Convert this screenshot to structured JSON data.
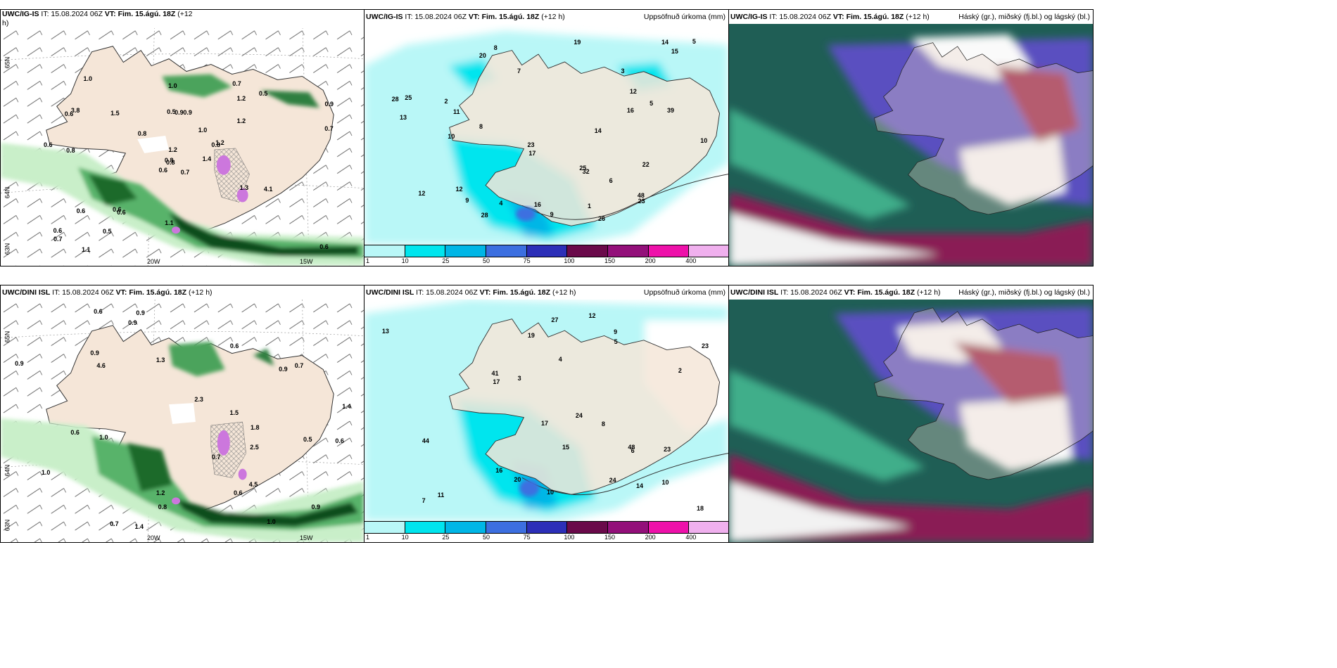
{
  "top_row": {
    "wind": {
      "model": "UWC/IG-IS",
      "it": "IT: 15.08.2024 06Z",
      "vt": "VT: Fim. 15.ágú. 18Z",
      "lead": "(+12",
      "lead2": "h)",
      "lat_labels": [
        "65N",
        "64N",
        "63N"
      ],
      "lon_labels": [
        "20W",
        "15W"
      ],
      "values": [
        "0.7",
        "0.6",
        "0.8",
        "0.6",
        "0.8",
        "0.6",
        "0.7",
        "0.9",
        "1.2",
        "1.4",
        "1.0",
        "0.6",
        "0.8",
        "0.9",
        "0.6",
        "1.2",
        "1.1",
        "0.5",
        "1.0",
        "0.6",
        "0.8",
        "0.7",
        "0.5",
        "0.9",
        "1.2",
        "4.1",
        "3.8",
        "1.0",
        "0.6",
        "1.3",
        "0.7",
        "0.8",
        "1.1",
        "1.2",
        "1.5",
        "0.5",
        "0.6"
      ]
    },
    "precip": {
      "model": "UWC/IG-IS",
      "it": "IT: 15.08.2024 06Z",
      "vt": "VT: Fim. 15.ágú. 18Z",
      "lead": "(+12 h)",
      "title": "Uppsöfnuð úrkoma (mm)",
      "values": [
        "26",
        "20",
        "12",
        "2",
        "5",
        "1",
        "10",
        "8",
        "17",
        "9",
        "12",
        "28",
        "23",
        "25",
        "16",
        "14",
        "13",
        "15",
        "22",
        "39",
        "48",
        "32",
        "28",
        "23",
        "14",
        "12",
        "10",
        "11",
        "9",
        "7",
        "6",
        "5",
        "3",
        "4",
        "8",
        "16",
        "19",
        "25"
      ]
    },
    "cloud": {
      "model": "UWC/IG-IS",
      "it": "IT: 15.08.2024 06Z",
      "vt": "VT: Fim. 15.ágú. 18Z",
      "lead": "(+12 h)",
      "title": "Háský (gr.), miðský (fj.bl.) og lágský (bl.)"
    }
  },
  "bottom_row": {
    "wind": {
      "model": "UWC/DINI ISL",
      "it": "IT: 15.08.2024 06Z",
      "vt": "VT: Fim. 15.ágú. 18Z",
      "lead": "(+12 h)",
      "lat_labels": [
        "65N",
        "64N",
        "63N"
      ],
      "lon_labels": [
        "20W",
        "15W"
      ],
      "values": [
        "0.6",
        "0.6",
        "0.9",
        "1.3",
        "0.9",
        "0.7",
        "2.3",
        "0.9",
        "1.4",
        "1.5",
        "0.9",
        "0.6",
        "1.0",
        "0.5",
        "0.9",
        "0.6",
        "0.7",
        "4.5",
        "4.6",
        "1.0",
        "0.7",
        "0.6",
        "0.8",
        "1.4",
        "2.5",
        "1.8",
        "0.9",
        "1.0",
        "1.2"
      ]
    },
    "precip": {
      "model": "UWC/DINI ISL",
      "it": "IT: 15.08.2024 06Z",
      "vt": "VT: Fim. 15.ágú. 18Z",
      "lead": "(+12 h)",
      "title": "Uppsöfnuð úrkoma (mm)",
      "values": [
        "7",
        "23",
        "24",
        "15",
        "19",
        "12",
        "10",
        "9",
        "14",
        "16",
        "18",
        "17",
        "20",
        "27",
        "24",
        "41",
        "48",
        "44",
        "17",
        "23",
        "13",
        "11",
        "10",
        "8",
        "6",
        "5",
        "3",
        "4",
        "2"
      ]
    },
    "cloud": {
      "model": "UWC/DINI ISL",
      "it": "IT: 15.08.2024 06Z",
      "vt": "VT: Fim. 15.ágú. 18Z",
      "lead": "(+12 h)",
      "title": "Háský (gr.), miðský (fj.bl.) og lágský (bl.)"
    }
  },
  "colorbar": {
    "ticks": [
      "1",
      "10",
      "25",
      "50",
      "75",
      "100",
      "150",
      "200",
      "400"
    ],
    "colors": [
      "#b9f7f7",
      "#00e5ee",
      "#00b6e6",
      "#3c6fe0",
      "#2c2fb8",
      "#6a0a4a",
      "#93107a",
      "#ee11aa",
      "#f0b0ee"
    ]
  }
}
